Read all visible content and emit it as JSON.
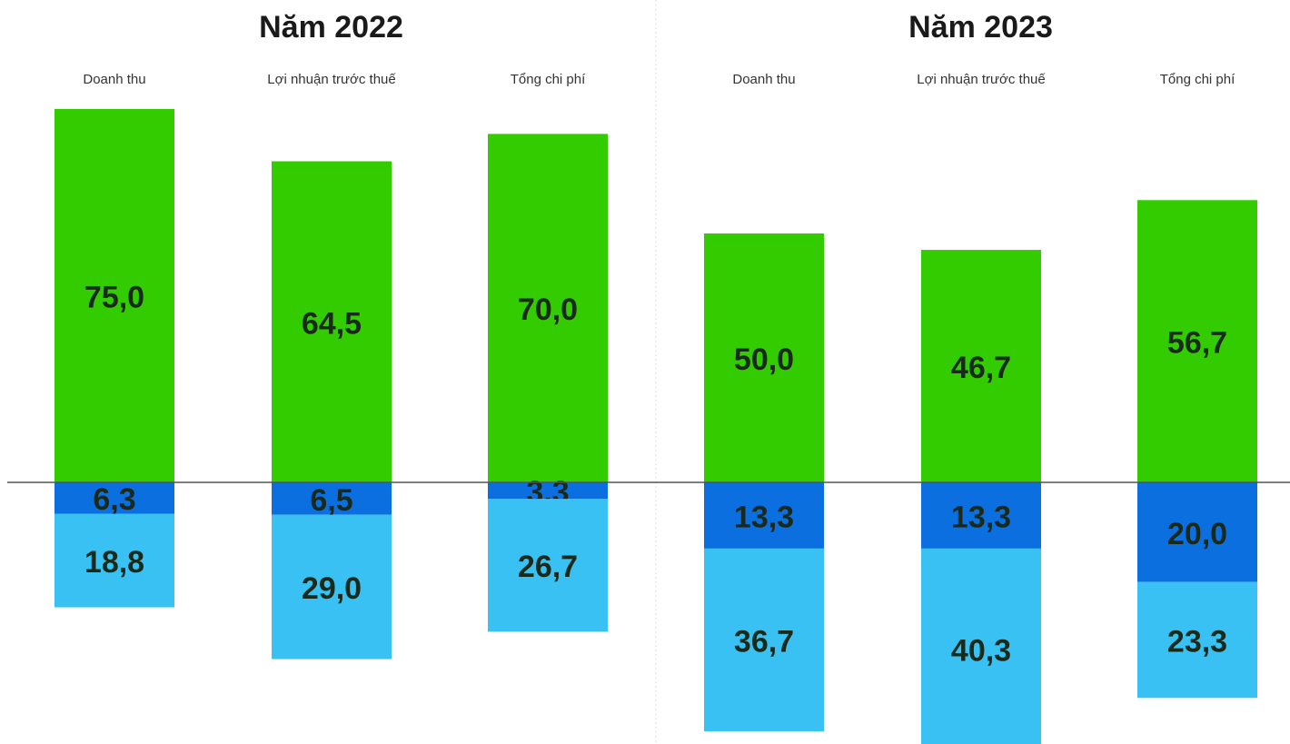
{
  "chart_data": [
    {
      "type": "bar",
      "stacked": true,
      "title": "Năm 2022",
      "categories": [
        "Doanh thu",
        "Lợi nhuận trước thuế",
        "Tổng chi phí"
      ],
      "series": [
        {
          "color": "#33cc00",
          "direction": "up",
          "values": [
            75.0,
            64.5,
            70.0
          ],
          "value_labels": [
            "75,0",
            "64,5",
            "70,0"
          ]
        },
        {
          "color": "#0b6fe0",
          "direction": "down",
          "values": [
            6.3,
            6.5,
            3.3
          ],
          "value_labels": [
            "6,3",
            "6,5",
            "3,3"
          ]
        },
        {
          "color": "#38c1f2",
          "direction": "down",
          "values": [
            18.8,
            29.0,
            26.7
          ],
          "value_labels": [
            "18,8",
            "29,0",
            "26,7"
          ]
        }
      ]
    },
    {
      "type": "bar",
      "stacked": true,
      "title": "Năm 2023",
      "categories": [
        "Doanh thu",
        "Lợi nhuận trước thuế",
        "Tổng chi phí"
      ],
      "series": [
        {
          "color": "#33cc00",
          "direction": "up",
          "values": [
            50.0,
            46.7,
            56.7
          ],
          "value_labels": [
            "50,0",
            "46,7",
            "56,7"
          ]
        },
        {
          "color": "#0b6fe0",
          "direction": "down",
          "values": [
            13.3,
            13.3,
            20.0
          ],
          "value_labels": [
            "13,3",
            "13,3",
            "20,0"
          ]
        },
        {
          "color": "#38c1f2",
          "direction": "down",
          "values": [
            36.7,
            40.3,
            23.3
          ],
          "value_labels": [
            "36,7",
            "40,3",
            "23,3"
          ]
        }
      ]
    }
  ]
}
